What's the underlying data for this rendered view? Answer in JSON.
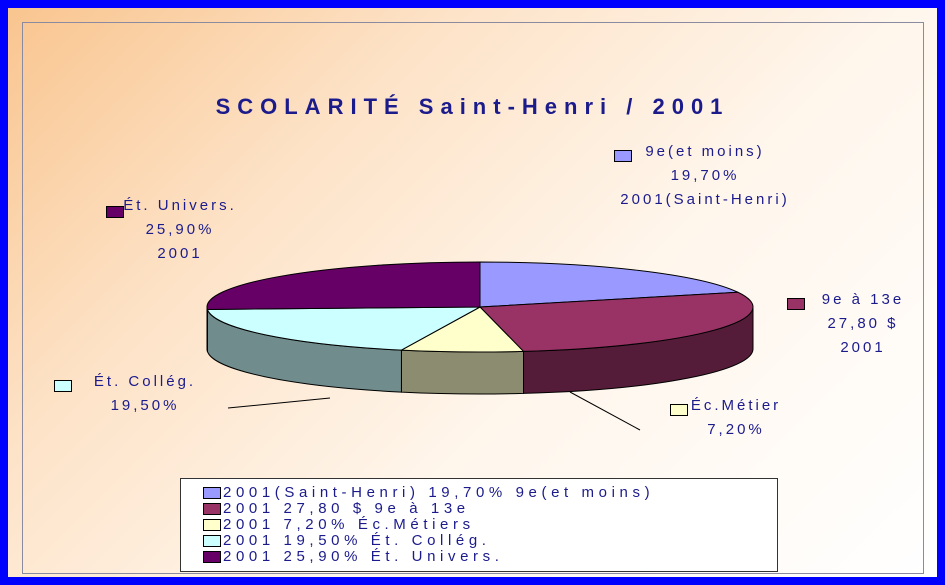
{
  "chart_data": {
    "type": "pie",
    "title": "SCOLARITÉ Saint-Henri / 2001",
    "categories": [
      "9e(et moins)",
      "9e à 13e",
      "Éc.Métier",
      "Ét. Collég.",
      "Ét. Univers."
    ],
    "values": [
      19.7,
      27.8,
      7.2,
      19.5,
      25.9
    ],
    "value_labels": [
      "19,70%",
      "27,80 $",
      "7,20%",
      "19,50%",
      "25,90%"
    ],
    "series_labels": {
      "0": "2001(Saint-Henri)",
      "1": "2001",
      "4": "2001"
    },
    "colors": [
      "#9999ff",
      "#993366",
      "#ffffcc",
      "#ccffff",
      "#660066"
    ],
    "legend": [
      "2001(Saint-Henri) 19,70% 9e(et moins)",
      "2001 27,80 $ 9e à 13e",
      "2001 7,20% Éc.Métiers",
      "2001 19,50% Ét. Collég.",
      "2001 25,90% Ét. Univers."
    ]
  }
}
